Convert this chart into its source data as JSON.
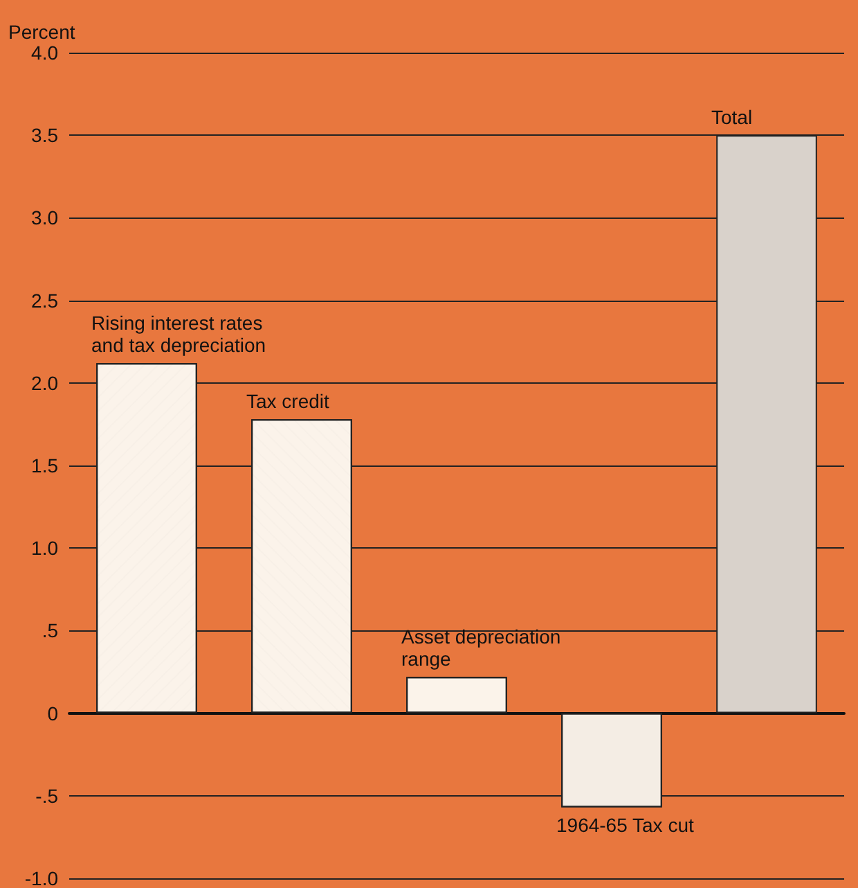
{
  "chart_data": {
    "type": "bar",
    "ylabel": "Percent",
    "categories": [
      "Rising interest rates and tax depreciation",
      "Tax credit",
      "Asset depreciation range",
      "1964-65 Tax cut",
      "Total"
    ],
    "values": [
      2.12,
      1.78,
      0.22,
      -0.57,
      3.5
    ],
    "colors": [
      "#fbf3ea",
      "#fbf3ea",
      "#fbf3ea",
      "#f4ede4",
      "#d9d2cb"
    ],
    "ylim": [
      -1.0,
      4.0
    ],
    "yticks": [
      {
        "value": -1.0,
        "label": "-1.0"
      },
      {
        "value": -0.5,
        "label": "-.5"
      },
      0,
      {
        "value": 0.5,
        "label": ".5"
      },
      {
        "value": 1.0,
        "label": "1.0"
      },
      {
        "value": 1.5,
        "label": "1.5"
      },
      {
        "value": 2.0,
        "label": "2.0"
      },
      {
        "value": 2.5,
        "label": "2.5"
      },
      {
        "value": 3.0,
        "label": "3.0"
      },
      {
        "value": 3.5,
        "label": "3.5"
      },
      {
        "value": 4.0,
        "label": "4.0"
      }
    ],
    "grid": "y"
  }
}
